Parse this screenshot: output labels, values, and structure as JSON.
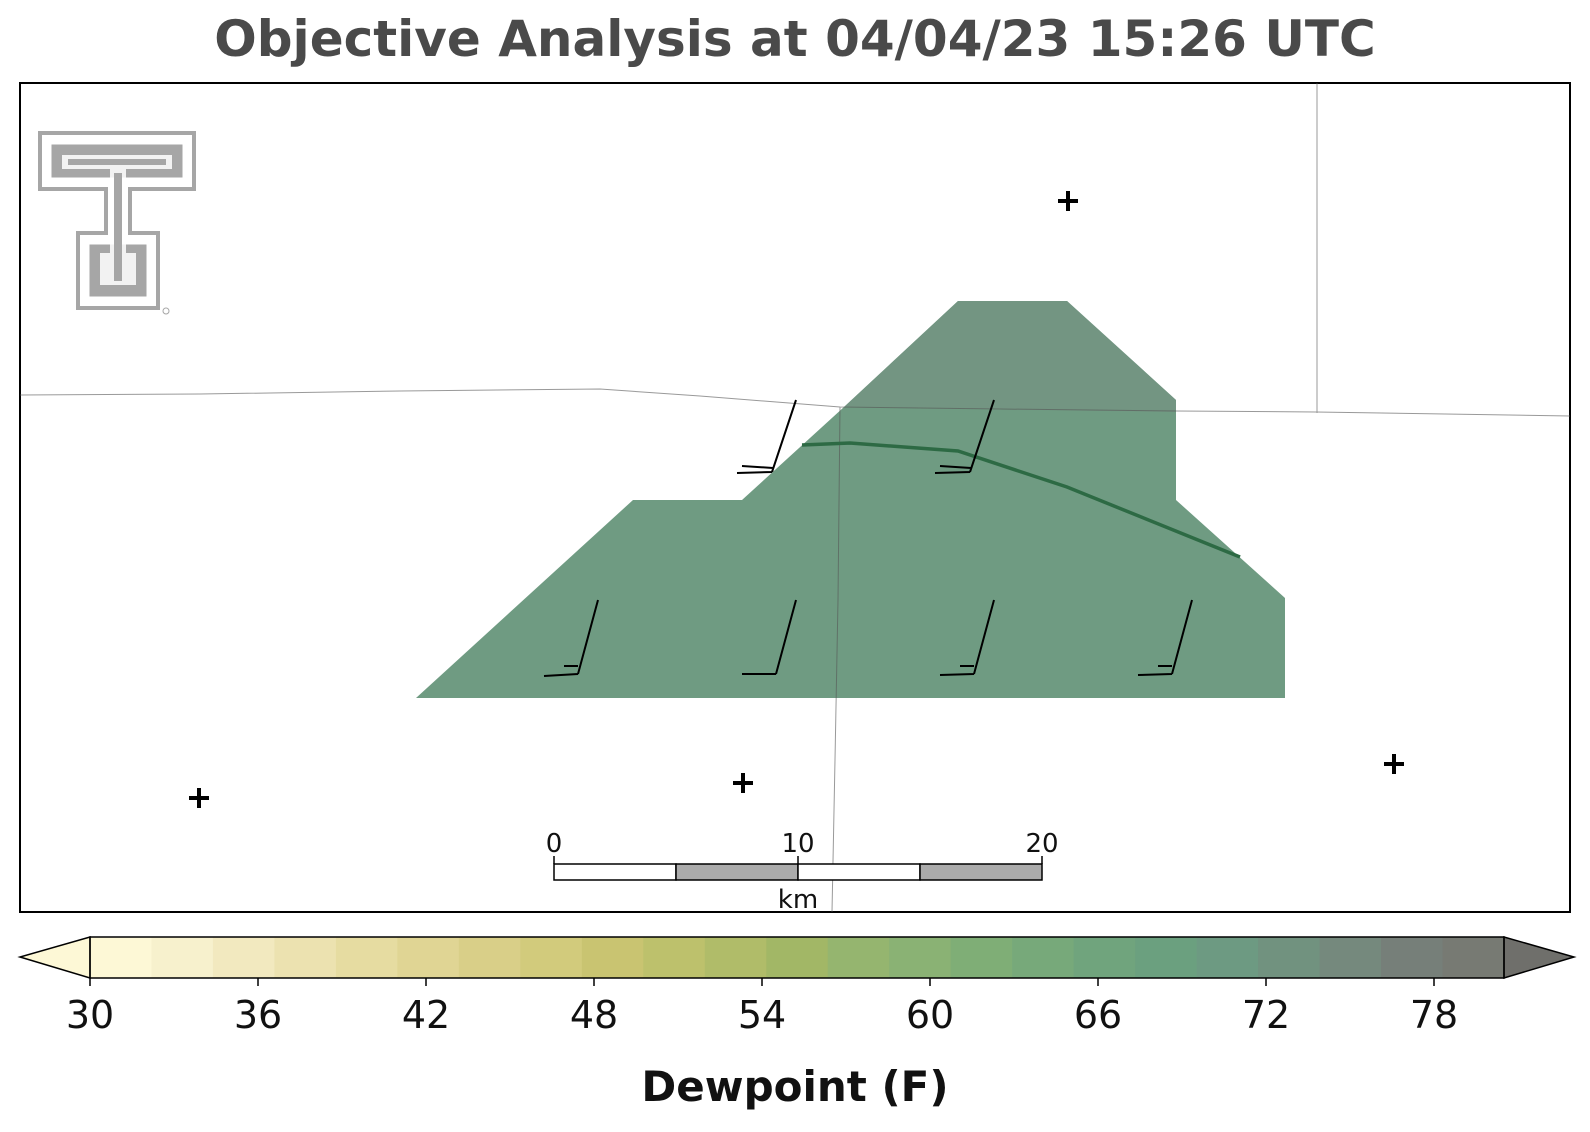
{
  "title": "Objective Analysis at 04/04/23 15:26 UTC",
  "colorbar": {
    "label": "Dewpoint (F)",
    "ticks": [
      "30",
      "36",
      "42",
      "48",
      "54",
      "60",
      "66",
      "72",
      "78"
    ],
    "extend": "both",
    "colors": [
      "#fdf8d6",
      "#f7f1cd",
      "#f2e9bf",
      "#ece2b0",
      "#e6dca1",
      "#e0d594",
      "#d9cf88",
      "#d2cb7c",
      "#c9c471",
      "#bdc16c",
      "#b0bc69",
      "#a2b766",
      "#95b56f",
      "#8ab274",
      "#7fae76",
      "#77a97a",
      "#70a47d",
      "#6ba07f",
      "#6d9a82",
      "#71927f",
      "#75897d",
      "#767f79",
      "#777a73"
    ],
    "under_color": "#fdf8d6",
    "over_color": "#6f6f6b"
  },
  "scale_bar": {
    "labels": [
      "0",
      "10",
      "20"
    ],
    "unit": "km"
  },
  "filled_region": {
    "color": "#6e9a82",
    "value_range_f": [
      66,
      72
    ]
  },
  "contour_line": {
    "color": "#2d6a44"
  },
  "station_marker": "+",
  "logo": "Texas Tech Double T"
}
